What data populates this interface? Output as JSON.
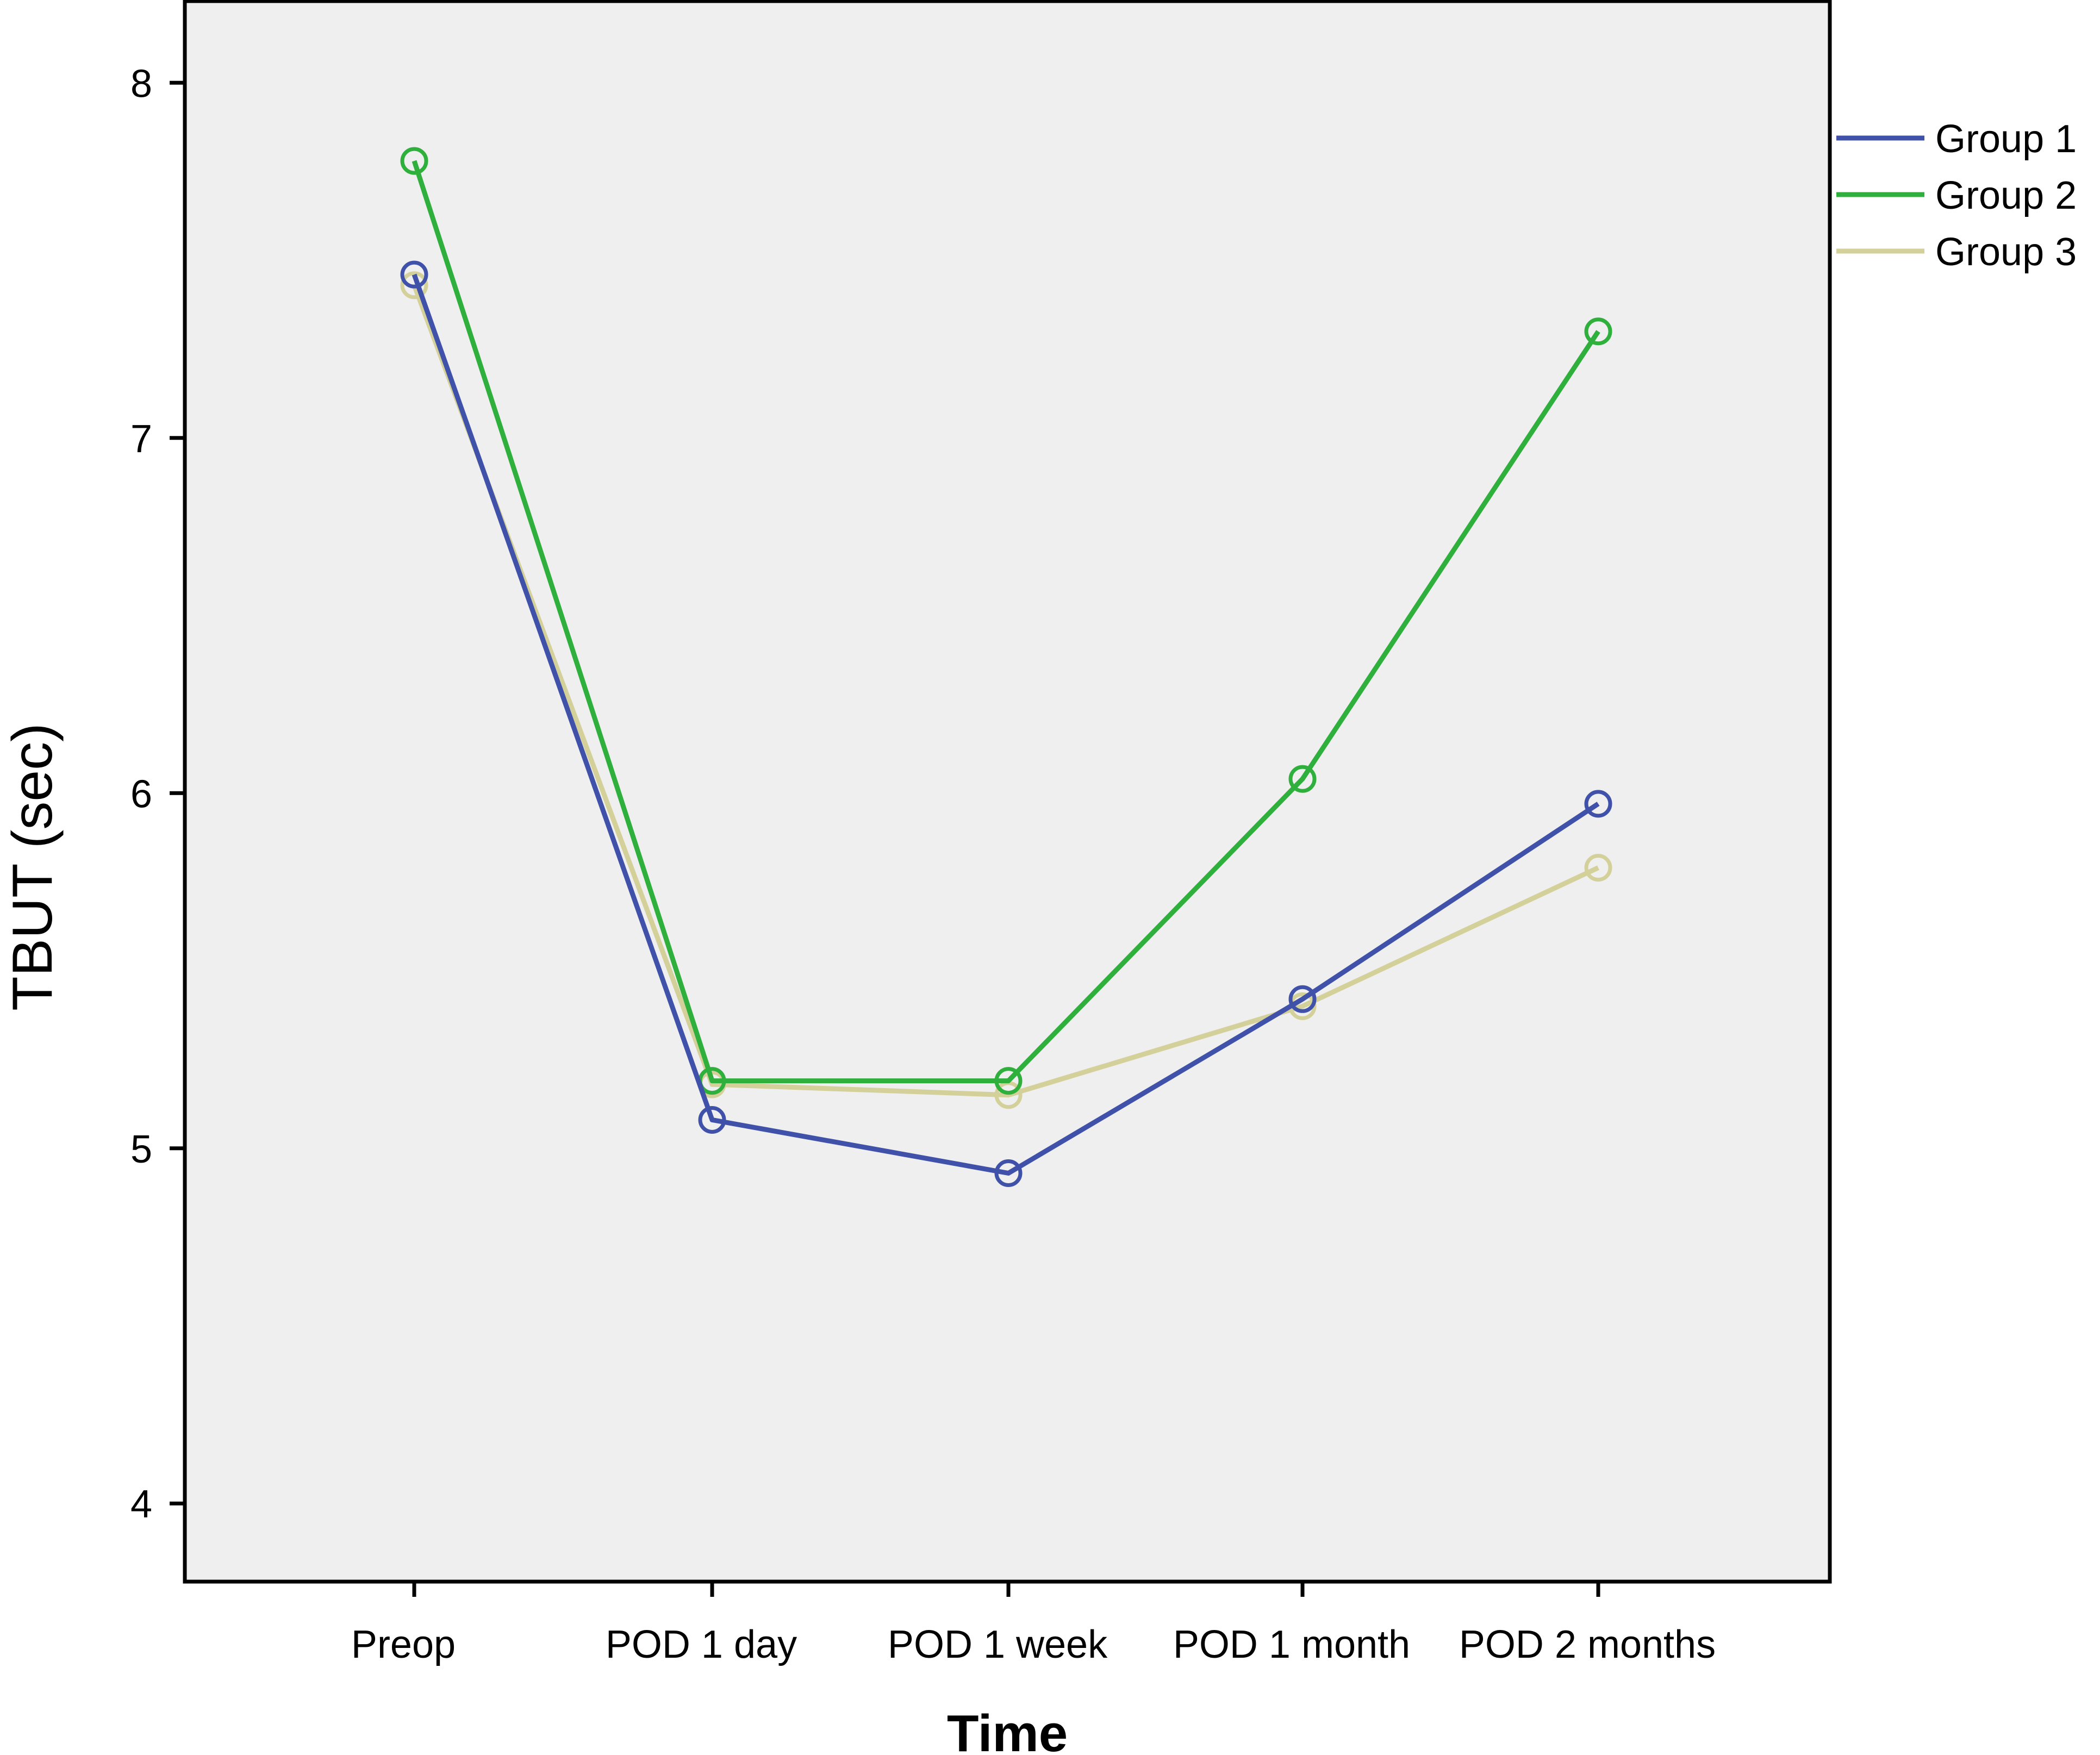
{
  "chart_data": {
    "type": "line",
    "xlabel": "Time",
    "ylabel": "TBUT (sec)",
    "categories": [
      "Preop",
      "POD 1 day",
      "POD 1 week",
      "POD 1 month",
      "POD 2 months"
    ],
    "ylim": [
      3.78,
      8.23
    ],
    "yticks": [
      4,
      5,
      6,
      7,
      8
    ],
    "grid": false,
    "legend_position": "right",
    "series": [
      {
        "name": "Group 1",
        "color": "#3f51a8",
        "values": [
          7.46,
          5.08,
          4.93,
          5.42,
          5.97
        ]
      },
      {
        "name": "Group 2",
        "color": "#2faf3c",
        "values": [
          7.78,
          5.19,
          5.19,
          6.04,
          7.3
        ]
      },
      {
        "name": "Group 3",
        "color": "#d4d09a",
        "values": [
          7.43,
          5.18,
          5.15,
          5.4,
          5.79
        ]
      }
    ],
    "marker": "open-circle",
    "plot_background": "#efefef"
  }
}
